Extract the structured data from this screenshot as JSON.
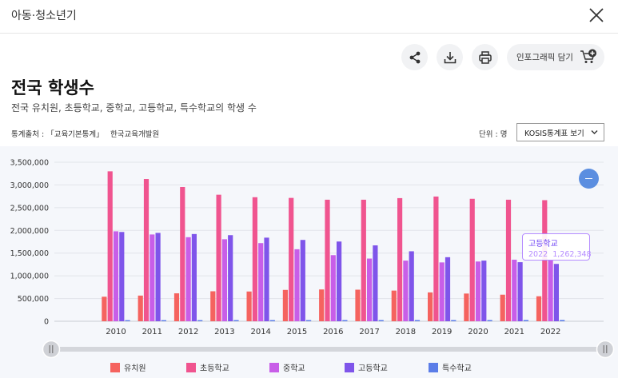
{
  "header": {
    "section_title": "아동·청소년기"
  },
  "toolbar": {
    "infographic_label": "인포그래픽 담기"
  },
  "page": {
    "title": "전국 학생수",
    "subtitle": "전국 유치원, 초등학교, 중학교, 고등학교, 특수학교의 학생 수"
  },
  "meta": {
    "source_label": "통계출처 : 「교육기본통계」",
    "source_value": "한국교육개발원",
    "unit_label": "단위 : 명",
    "kosis_select": "KOSIS통계표 보기"
  },
  "tooltip": {
    "series": "고등학교",
    "year": "2022",
    "value": "1,262,348"
  },
  "colors": {
    "유치원": "#f5635f",
    "초등학교": "#f0548f",
    "중학교": "#c85ee8",
    "고등학교": "#7f55ea",
    "특수학교": "#5b7de8",
    "tooltip_border": "#b58cff",
    "zoom_button": "#5b8ee0"
  },
  "chart_data": {
    "type": "bar",
    "categories": [
      "2010",
      "2011",
      "2012",
      "2013",
      "2014",
      "2015",
      "2016",
      "2017",
      "2018",
      "2019",
      "2020",
      "2021",
      "2022"
    ],
    "series": [
      {
        "name": "유치원",
        "values": [
          540000,
          565000,
          615000,
          660000,
          655000,
          690000,
          700000,
          695000,
          675000,
          635000,
          610000,
          585000,
          550000
        ]
      },
      {
        "name": "초등학교",
        "values": [
          3300000,
          3130000,
          2955000,
          2785000,
          2730000,
          2715000,
          2675000,
          2675000,
          2710000,
          2745000,
          2695000,
          2675000,
          2665000
        ]
      },
      {
        "name": "중학교",
        "values": [
          1980000,
          1910000,
          1850000,
          1805000,
          1720000,
          1585000,
          1455000,
          1380000,
          1335000,
          1295000,
          1315000,
          1355000,
          1350000
        ]
      },
      {
        "name": "고등학교",
        "values": [
          1965000,
          1945000,
          1920000,
          1895000,
          1840000,
          1790000,
          1755000,
          1670000,
          1540000,
          1410000,
          1335000,
          1300000,
          1262348
        ]
      },
      {
        "name": "특수학교",
        "values": [
          24000,
          24500,
          25000,
          25500,
          25800,
          25900,
          26000,
          26200,
          26300,
          26400,
          26600,
          27000,
          27500
        ]
      }
    ],
    "yticks": [
      "3,500,000",
      "3,000,000",
      "2,500,000",
      "2,000,000",
      "1,500,000",
      "1,000,000",
      "500,000",
      "0"
    ],
    "ylim": [
      0,
      3500000
    ],
    "grid": true,
    "legend_position": "bottom"
  }
}
